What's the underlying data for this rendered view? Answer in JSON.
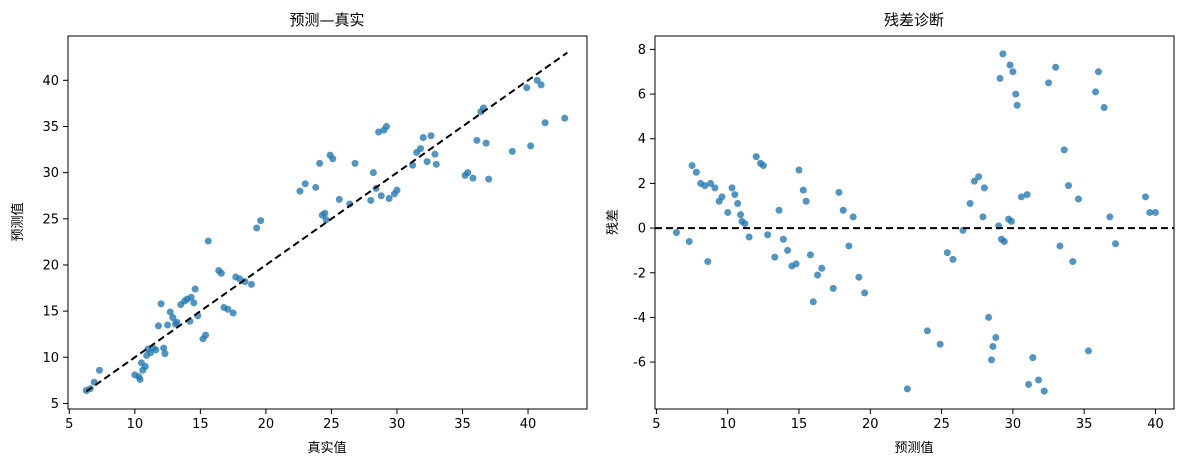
{
  "chart_data": [
    {
      "type": "scatter",
      "title": "预测—真实",
      "xlabel": "真实值",
      "ylabel": "预测值",
      "xlim": [
        4.9,
        44.5
      ],
      "ylim": [
        4.4,
        44.8
      ],
      "xticks": [
        5,
        10,
        15,
        20,
        25,
        30,
        35,
        40
      ],
      "yticks": [
        5,
        10,
        15,
        20,
        25,
        30,
        35,
        40
      ],
      "point_color": "#1f77b4",
      "reference_line": {
        "style": "dashed",
        "color": "#000000",
        "x": [
          6.3,
          43
        ],
        "y": [
          6.3,
          43
        ]
      },
      "grid": false,
      "x": [
        6.3,
        6.6,
        6.9,
        7.3,
        10.0,
        10.3,
        10.4,
        10.5,
        10.6,
        10.8,
        10.9,
        11.0,
        11.2,
        11.4,
        11.6,
        11.8,
        12.0,
        12.2,
        12.3,
        12.5,
        12.7,
        12.9,
        13.1,
        13.2,
        13.5,
        13.8,
        14.0,
        14.2,
        14.3,
        14.5,
        14.6,
        14.8,
        15.2,
        15.4,
        15.6,
        16.4,
        16.6,
        16.8,
        17.1,
        17.5,
        17.7,
        18.0,
        18.4,
        18.9,
        19.3,
        19.6,
        22.6,
        23.0,
        23.8,
        24.1,
        24.3,
        24.5,
        24.6,
        24.9,
        25.1,
        25.6,
        26.4,
        26.8,
        28.0,
        28.2,
        28.4,
        28.6,
        28.8,
        29.0,
        29.2,
        29.4,
        29.8,
        30.0,
        31.2,
        31.5,
        31.8,
        32.0,
        32.3,
        32.6,
        32.9,
        33.0,
        35.2,
        35.4,
        35.8,
        36.1,
        36.4,
        36.6,
        36.8,
        37.0,
        38.8,
        39.9,
        40.2,
        40.7,
        41.0,
        41.3,
        42.8
      ],
      "y": [
        6.4,
        6.6,
        7.3,
        8.6,
        8.1,
        7.9,
        7.6,
        9.4,
        8.6,
        9.0,
        10.2,
        10.9,
        10.5,
        11.0,
        10.8,
        13.4,
        15.8,
        11.0,
        10.4,
        13.5,
        14.9,
        14.3,
        13.6,
        13.8,
        15.7,
        16.1,
        16.3,
        13.9,
        16.5,
        15.9,
        17.4,
        14.5,
        12.0,
        12.4,
        22.6,
        19.4,
        19.1,
        15.4,
        15.2,
        14.8,
        18.7,
        18.5,
        18.2,
        17.9,
        24.0,
        24.8,
        28.0,
        28.8,
        28.4,
        31.0,
        25.4,
        25.6,
        24.9,
        31.9,
        31.5,
        27.1,
        26.6,
        31.0,
        27.0,
        30.0,
        28.3,
        34.4,
        27.5,
        34.6,
        35.0,
        27.2,
        27.7,
        28.1,
        30.8,
        32.2,
        32.6,
        33.8,
        31.2,
        34.0,
        32.0,
        30.9,
        29.7,
        30.0,
        29.4,
        33.5,
        36.6,
        37.0,
        33.2,
        29.3,
        32.3,
        39.2,
        32.9,
        40.0,
        39.5,
        35.4,
        35.9
      ]
    },
    {
      "type": "scatter",
      "title": "残差诊断",
      "xlabel": "预测值",
      "ylabel": "残差",
      "xlim": [
        4.9,
        41.3
      ],
      "ylim": [
        -8.1,
        8.6
      ],
      "xticks": [
        5,
        10,
        15,
        20,
        25,
        30,
        35,
        40
      ],
      "yticks": [
        -6,
        -4,
        -2,
        0,
        2,
        4,
        6,
        8
      ],
      "point_color": "#1f77b4",
      "reference_line": {
        "style": "dashed",
        "color": "#000000",
        "y": 0
      },
      "grid": false,
      "x": [
        6.4,
        7.3,
        7.5,
        7.8,
        8.1,
        8.4,
        8.6,
        8.8,
        9.1,
        9.4,
        9.6,
        10.0,
        10.3,
        10.5,
        10.7,
        10.9,
        11.0,
        11.2,
        11.5,
        12.0,
        12.3,
        12.5,
        12.8,
        13.3,
        13.6,
        13.9,
        14.2,
        14.5,
        14.8,
        15.0,
        15.3,
        15.5,
        15.8,
        16.0,
        16.3,
        16.6,
        17.4,
        17.8,
        18.1,
        18.5,
        18.8,
        19.2,
        19.6,
        22.6,
        24.0,
        24.9,
        25.4,
        25.8,
        26.5,
        27.0,
        27.3,
        27.6,
        27.9,
        28.0,
        28.3,
        28.6,
        28.8,
        29.0,
        29.2,
        29.4,
        29.7,
        30.0,
        30.3,
        31.0,
        31.1,
        31.4,
        31.8,
        32.2,
        32.5,
        33.0,
        33.3,
        33.6,
        33.9,
        34.2,
        34.6,
        35.3,
        35.8,
        36.0,
        36.4,
        36.8,
        37.2,
        39.3,
        39.6,
        40.0,
        29.3,
        29.8,
        30.2,
        29.1,
        30.6,
        28.5,
        29.9
      ],
      "y": [
        -0.2,
        -0.6,
        2.8,
        2.5,
        2.0,
        1.9,
        -1.5,
        2.0,
        1.8,
        1.2,
        1.4,
        0.7,
        1.8,
        1.5,
        1.1,
        0.6,
        0.3,
        0.2,
        -0.4,
        3.2,
        2.9,
        2.8,
        -0.3,
        -1.3,
        0.8,
        -0.5,
        -1.0,
        -1.7,
        -1.6,
        2.6,
        1.7,
        1.2,
        -1.2,
        -3.3,
        -2.1,
        -1.8,
        -2.7,
        1.6,
        0.8,
        -0.8,
        0.5,
        -2.2,
        -2.9,
        -7.2,
        -4.6,
        -5.2,
        -1.1,
        -1.4,
        -0.1,
        1.1,
        2.1,
        2.3,
        0.5,
        1.8,
        -4.0,
        -5.3,
        -4.9,
        0.1,
        -0.5,
        -0.6,
        0.4,
        7.0,
        5.5,
        1.5,
        -7.0,
        -5.8,
        -6.8,
        -7.3,
        6.5,
        7.2,
        -0.8,
        3.5,
        1.9,
        -1.5,
        1.3,
        -5.5,
        6.1,
        7.0,
        5.4,
        0.5,
        -0.7,
        1.4,
        0.7,
        0.7,
        7.8,
        7.3,
        6.0,
        6.7,
        1.4,
        -5.9,
        0.3
      ]
    }
  ]
}
